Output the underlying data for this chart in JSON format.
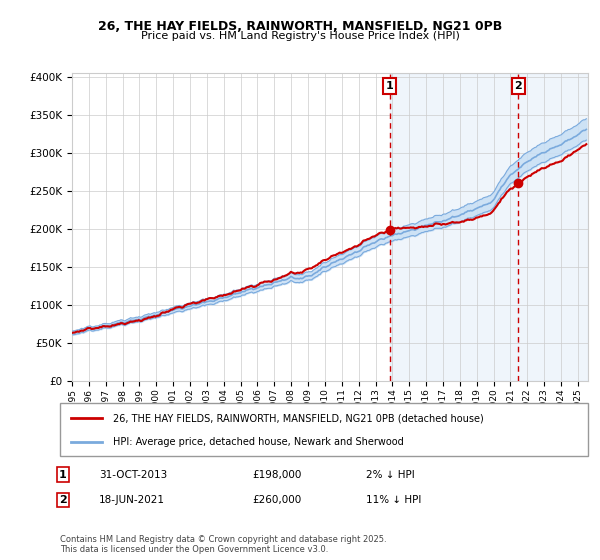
{
  "title": "26, THE HAY FIELDS, RAINWORTH, MANSFIELD, NG21 0PB",
  "subtitle": "Price paid vs. HM Land Registry's House Price Index (HPI)",
  "legend_line1": "26, THE HAY FIELDS, RAINWORTH, MANSFIELD, NG21 0PB (detached house)",
  "legend_line2": "HPI: Average price, detached house, Newark and Sherwood",
  "transaction1_date": "31-OCT-2013",
  "transaction1_price": 198000,
  "transaction1_label": "2% ↓ HPI",
  "transaction2_date": "18-JUN-2021",
  "transaction2_price": 260000,
  "transaction2_label": "11% ↓ HPI",
  "footnote": "Contains HM Land Registry data © Crown copyright and database right 2025.\nThis data is licensed under the Open Government Licence v3.0.",
  "hpi_color": "#7aaadd",
  "hpi_band_color": "#c8dff5",
  "price_color": "#cc0000",
  "vline_color": "#cc0000",
  "transaction_dot_color": "#cc0000",
  "grid_color": "#cccccc",
  "ylim_max": 400000,
  "yticks": [
    0,
    50000,
    100000,
    150000,
    200000,
    250000,
    300000,
    350000,
    400000
  ],
  "start_year": 1995,
  "end_year": 2025,
  "transaction1_x": 2013.83,
  "transaction2_x": 2021.46
}
